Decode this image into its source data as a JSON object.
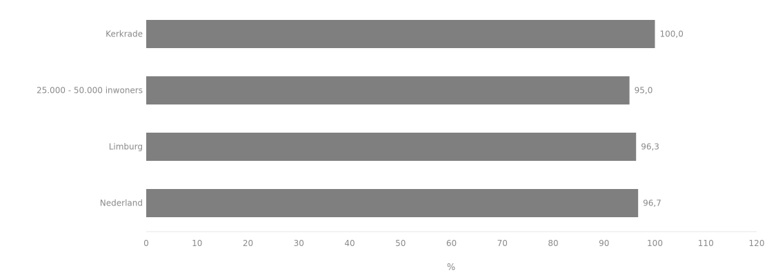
{
  "chart_data": {
    "type": "bar",
    "orientation": "horizontal",
    "categories": [
      "Kerkrade",
      "25.000 - 50.000 inwoners",
      "Limburg",
      "Nederland"
    ],
    "values": [
      100.0,
      95.0,
      96.3,
      96.7
    ],
    "value_labels": [
      "100,0",
      "95,0",
      "96,3",
      "96,7"
    ],
    "xlabel": "%",
    "ylabel": "",
    "xlim": [
      0,
      120
    ],
    "xticks": [
      0,
      10,
      20,
      30,
      40,
      50,
      60,
      70,
      80,
      90,
      100,
      110,
      120
    ],
    "grid": false,
    "legend": "none",
    "bar_color": "#7f7f7f"
  }
}
